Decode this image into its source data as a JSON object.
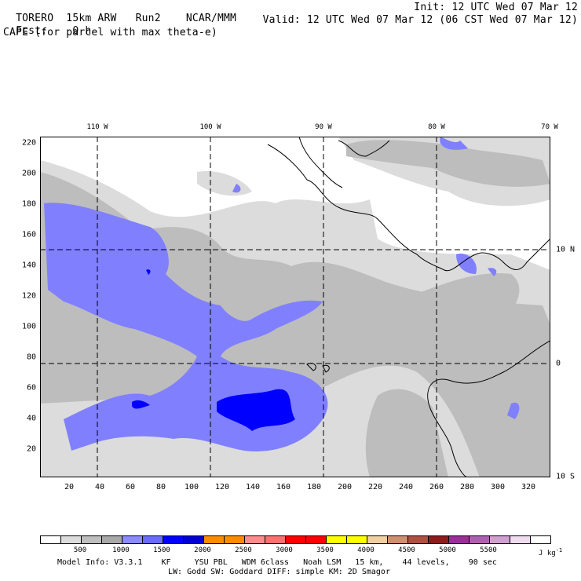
{
  "header": {
    "model": "TORERO",
    "resolution": "15km ARW",
    "run": "Run2",
    "center": "NCAR/MMM",
    "init": "Init: 12 UTC Wed 07 Mar 12",
    "fcst_label": "Fcst:",
    "fcst_value": "0 h",
    "valid": "Valid: 12 UTC Wed 07 Mar 12 (06 CST Wed 07 Mar 12)",
    "field": "CAPE (for parcel with max theta-e)"
  },
  "map": {
    "lon_ticks": [
      "110 W",
      "100 W",
      "90 W",
      "80 W",
      "70 W"
    ],
    "lat_ticks": [
      "10 N",
      "0",
      "10 S"
    ],
    "y_ticks": [
      "220",
      "200",
      "180",
      "160",
      "140",
      "120",
      "100",
      "80",
      "60",
      "40",
      "20"
    ],
    "x_ticks": [
      "20",
      "40",
      "60",
      "80",
      "100",
      "120",
      "140",
      "160",
      "180",
      "200",
      "220",
      "240",
      "260",
      "280",
      "300",
      "320"
    ]
  },
  "colorbar": {
    "units": "J kg",
    "units_exp": "-1",
    "labels": [
      "500",
      "1000",
      "1500",
      "2000",
      "2500",
      "3000",
      "3500",
      "4000",
      "4500",
      "5000",
      "5500"
    ],
    "colors": [
      "#ffffff",
      "#dcdcdc",
      "#bebebe",
      "#a8a8a8",
      "#8c8cff",
      "#6b6bff",
      "#0000ff",
      "#0000d0",
      "#ff8c00",
      "#ff8c00",
      "#ff8c8c",
      "#ff7070",
      "#ff0000",
      "#ff0000",
      "#ffff00",
      "#ffff00",
      "#f0d0a0",
      "#d09070",
      "#b05040",
      "#901a1a",
      "#9b2e9b",
      "#b060b0",
      "#d0a0d0",
      "#f0dcf0",
      "#ffffff"
    ]
  },
  "footer": {
    "line1": "Model Info: V3.3.1    KF     YSU PBL   WDM 6class   Noah LSM   15 km,    44 levels,    90 sec",
    "line2": "LW: Godd SW: Goddard DIFF: simple KM: 2D Smagor"
  }
}
